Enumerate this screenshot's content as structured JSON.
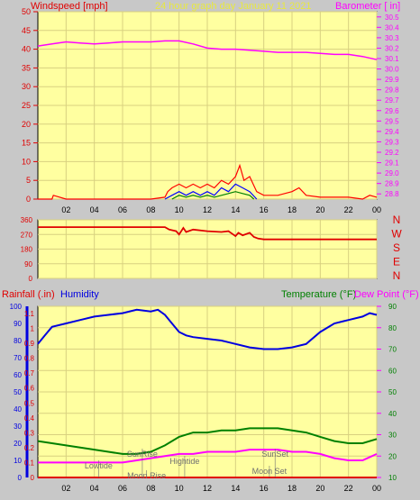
{
  "header": {
    "left_label": "Windspeed [mph]",
    "center_label": "24 hour graph day   January 11 2021",
    "right_label": "Barometer [ in]"
  },
  "middle": {
    "compass_labels": [
      "N",
      "W",
      "S",
      "E",
      "N"
    ]
  },
  "bottom_header": {
    "rainfall_label": "Rainfall (.in)",
    "humidity_label": "Humidity",
    "temperature_label": "Temperature (°F)",
    "dewpoint_label": "Dew Point (°F)"
  },
  "colors": {
    "background": "#c8c8c8",
    "plot_bg": "#ffffa0",
    "grid": "#d8d080",
    "windspeed": "#ff0000",
    "gust_mid": "#0000ff",
    "gust_low": "#008000",
    "barometer": "#ff00ff",
    "direction": "#e00000",
    "humidity": "#0000e0",
    "temperature": "#008000",
    "dewpoint": "#ff00ff",
    "rainfall": "#e00000",
    "event_text": "#707070"
  },
  "chart_data": [
    {
      "type": "line",
      "title": "24 hour graph day   January 11 2021",
      "x_ticks": [
        "02",
        "04",
        "06",
        "08",
        "10",
        "12",
        "14",
        "16",
        "18",
        "20",
        "22",
        "00"
      ],
      "y_left_label": "Windspeed [mph]",
      "y_left_ticks": [
        "0",
        "5",
        "10",
        "15",
        "20",
        "25",
        "30",
        "35",
        "40",
        "45",
        "50"
      ],
      "y_left_range": [
        0,
        50
      ],
      "y_right_label": "Barometer [ in]",
      "y_right_ticks": [
        "28.8",
        "28.9",
        "29.0",
        "29.1",
        "29.2",
        "29.3",
        "29.4",
        "29.5",
        "29.6",
        "29.7",
        "29.8",
        "29.9",
        "30.0",
        "30.1",
        "30.2",
        "30.3",
        "30.4",
        "30.5"
      ],
      "y_right_range": [
        28.75,
        30.55
      ],
      "grid": true,
      "series": [
        {
          "name": "Windspeed [mph]",
          "axis": "left",
          "color": "#ff0000",
          "x": [
            0,
            1,
            1.1,
            2,
            4,
            6,
            8,
            9,
            9.2,
            9.5,
            10,
            10.5,
            11,
            11.5,
            12,
            12.5,
            13,
            13.5,
            14,
            14.3,
            14.6,
            15,
            15.5,
            16,
            17,
            18,
            18.5,
            19,
            20,
            21,
            22,
            23,
            23.5,
            24
          ],
          "y": [
            0,
            0,
            1,
            0,
            0,
            0,
            0,
            0.5,
            2,
            3,
            4,
            3,
            4,
            3,
            4,
            3,
            5,
            4,
            6,
            9,
            5,
            6,
            2,
            1,
            1,
            2,
            3,
            1,
            0.5,
            0.5,
            0.5,
            0,
            1,
            0.5
          ]
        },
        {
          "name": "Windspeed [mph]",
          "axis": "left",
          "color": "#0000ff",
          "x": [
            9,
            9.5,
            10,
            10.5,
            11,
            11.5,
            12,
            12.5,
            13,
            13.5,
            14,
            14.5,
            15,
            15.5
          ],
          "y": [
            0,
            1,
            2,
            1,
            2,
            1,
            2,
            1,
            3,
            2,
            4,
            3,
            2,
            0
          ]
        },
        {
          "name": "Windspeed [mph]",
          "axis": "left",
          "color": "#008000",
          "x": [
            9.5,
            10,
            10.5,
            11,
            11.5,
            12,
            12.5,
            13,
            13.5,
            14,
            14.5,
            15,
            15.3
          ],
          "y": [
            0,
            1,
            0.5,
            1,
            0.5,
            1,
            0.5,
            1,
            1.5,
            2,
            1.5,
            1,
            0
          ]
        },
        {
          "name": "Barometer [ in]",
          "axis": "right",
          "color": "#ff00ff",
          "x": [
            0,
            1,
            2,
            3,
            4,
            5,
            6,
            7,
            8,
            9,
            10,
            11,
            12,
            13,
            14,
            15,
            16,
            17,
            18,
            19,
            20,
            21,
            22,
            23,
            24
          ],
          "y": [
            30.22,
            30.24,
            30.26,
            30.25,
            30.24,
            30.25,
            30.26,
            30.26,
            30.26,
            30.27,
            30.27,
            30.24,
            30.2,
            30.19,
            30.19,
            30.18,
            30.17,
            30.16,
            30.16,
            30.16,
            30.15,
            30.14,
            30.14,
            30.12,
            30.09
          ]
        }
      ]
    },
    {
      "type": "line",
      "x_ticks": [
        "02",
        "04",
        "06",
        "08",
        "10",
        "12",
        "14",
        "16",
        "18",
        "20",
        "22",
        "00"
      ],
      "y_left_ticks": [
        "0",
        "90",
        "180",
        "270",
        "360"
      ],
      "y_left_range": [
        0,
        360
      ],
      "y_right_ticks": [
        "N",
        "W",
        "S",
        "E",
        "N"
      ],
      "grid": true,
      "series": [
        {
          "name": "Wind direction",
          "color": "#e00000",
          "x": [
            0,
            8,
            9,
            9.3,
            9.8,
            10,
            10.3,
            10.5,
            11,
            12,
            13,
            13.5,
            14,
            14.2,
            14.5,
            15,
            15.3,
            15.6,
            16,
            18,
            20,
            22,
            24
          ],
          "y": [
            315,
            315,
            315,
            300,
            290,
            270,
            310,
            285,
            300,
            290,
            285,
            290,
            260,
            280,
            265,
            280,
            255,
            245,
            240,
            240,
            240,
            240,
            240
          ]
        }
      ]
    },
    {
      "type": "line",
      "x_ticks": [
        "02",
        "04",
        "06",
        "08",
        "10",
        "12",
        "14",
        "16",
        "18",
        "20",
        "22",
        "00"
      ],
      "y_outer_left_label": "Rainfall (.in)",
      "y_outer_left_ticks": [
        "0",
        "10",
        "20",
        "30",
        "40",
        "50",
        "60",
        "70",
        "80",
        "90",
        "100"
      ],
      "y_inner_left_label": "Humidity",
      "y_inner_left_ticks": [
        "0",
        "0.1",
        "0.2",
        "0.3",
        "0.4",
        "0.5",
        "0.6",
        "0.7",
        "0.8",
        "0.9",
        "1",
        "1.1"
      ],
      "y_right_label": "Temperature (°F)",
      "y_right_ticks": [
        "10",
        "20",
        "30",
        "40",
        "50",
        "60",
        "70",
        "80",
        "90"
      ],
      "y_right_range": [
        10,
        90
      ],
      "grid": true,
      "annotations": [
        {
          "text": "Lowtide",
          "x": 4.3
        },
        {
          "text": "SunRise",
          "x": 7.4
        },
        {
          "text": "Moon Rise",
          "x": 7.7
        },
        {
          "text": "Hightide",
          "x": 10.4
        },
        {
          "text": "SunSet",
          "x": 16.8
        },
        {
          "text": "Moon Set",
          "x": 16.4
        }
      ],
      "series": [
        {
          "name": "Humidity",
          "axis": "humidity_pct",
          "color": "#0000e0",
          "x": [
            0,
            0.5,
            1,
            2,
            3,
            4,
            5,
            6,
            7,
            8,
            8.5,
            9,
            9.5,
            10,
            10.5,
            11,
            12,
            13,
            14,
            15,
            16,
            17,
            18,
            19,
            20,
            21,
            22,
            23,
            23.5,
            24
          ],
          "y": [
            78,
            83,
            88,
            90,
            92,
            94,
            95,
            96,
            98,
            97,
            98,
            95,
            90,
            85,
            83,
            82,
            81,
            80,
            78,
            76,
            75,
            75,
            76,
            78,
            85,
            90,
            92,
            94,
            96,
            95
          ]
        },
        {
          "name": "Temperature (°F)",
          "axis": "right",
          "color": "#008000",
          "x": [
            0,
            1,
            2,
            3,
            4,
            5,
            6,
            7,
            8,
            9,
            10,
            11,
            12,
            13,
            14,
            15,
            16,
            17,
            18,
            19,
            20,
            21,
            22,
            23,
            24
          ],
          "y": [
            27,
            26,
            25,
            24,
            23,
            22,
            21,
            21,
            22,
            25,
            29,
            31,
            31,
            32,
            32,
            33,
            33,
            33,
            32,
            31,
            29,
            27,
            26,
            26,
            28
          ]
        },
        {
          "name": "Dew Point (°F)",
          "axis": "right",
          "color": "#ff00ff",
          "x": [
            0,
            1,
            2,
            3,
            4,
            5,
            6,
            7,
            8,
            9,
            10,
            11,
            12,
            13,
            14,
            15,
            16,
            17,
            18,
            19,
            20,
            21,
            22,
            23,
            24
          ],
          "y": [
            17,
            17,
            17,
            17,
            17,
            17,
            17,
            18,
            19,
            20,
            21,
            21,
            22,
            22,
            22,
            23,
            23,
            23,
            22,
            22,
            21,
            19,
            18,
            18,
            21
          ]
        },
        {
          "name": "Rainfall (.in)",
          "axis": "rain",
          "color": "#e00000",
          "x": [
            0,
            24
          ],
          "y": [
            0,
            0
          ]
        }
      ]
    }
  ]
}
